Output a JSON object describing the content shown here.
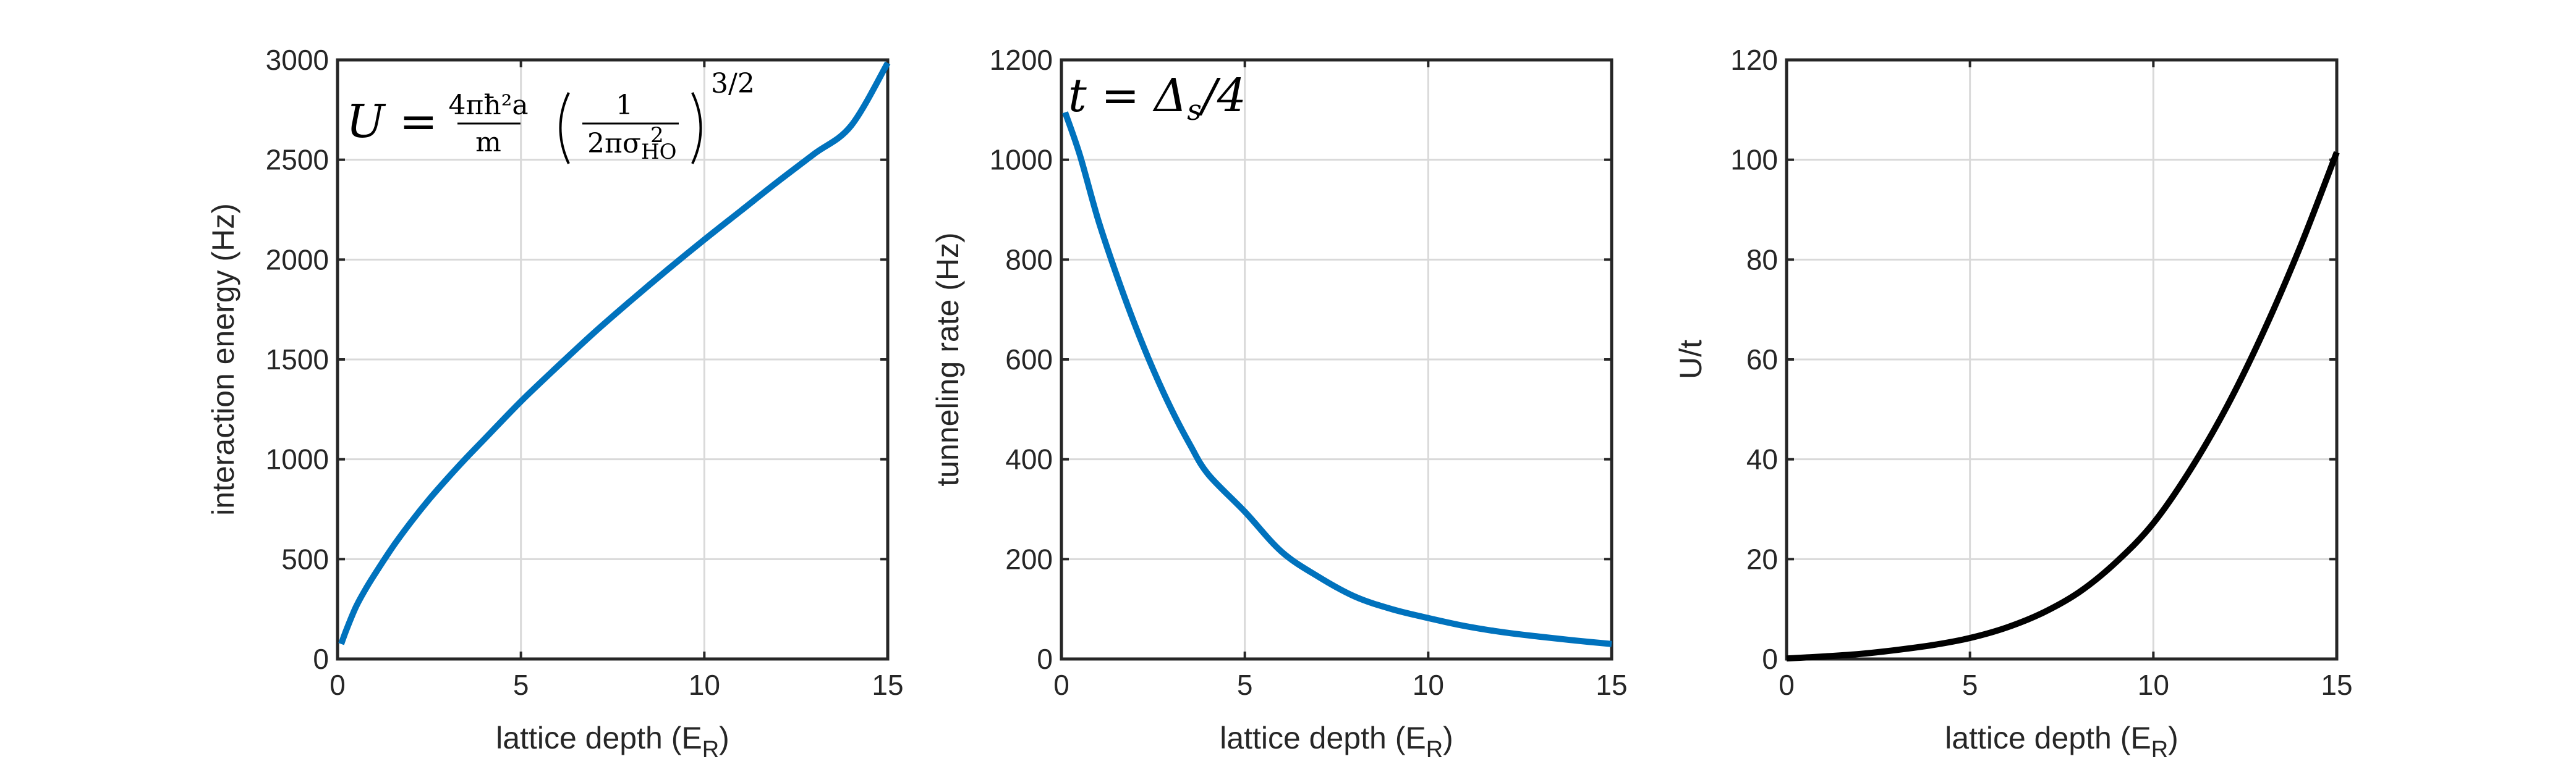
{
  "chart_data": [
    {
      "type": "line",
      "xlabel": "lattice depth (E",
      "xlabel_sub": "R",
      "xlabel_tail": ")",
      "ylabel": "interaction energy (Hz)",
      "xlim": [
        0,
        15
      ],
      "ylim": [
        0,
        3000
      ],
      "xticks": [
        "0",
        "5",
        "10",
        "15"
      ],
      "yticks": [
        "0",
        "500",
        "1000",
        "1500",
        "2000",
        "2500",
        "3000"
      ],
      "grid": true,
      "color": "#0072BD",
      "annotation": {
        "lhs": "U =",
        "frac1_num": "4πħ²a",
        "frac1_den": "m",
        "frac2_num": "1",
        "frac2_den": "2πσ",
        "frac2_den_sub": "HO",
        "frac2_den_sup": "2",
        "exponent": "3/2"
      },
      "x": [
        0.1,
        0.25,
        0.5,
        0.75,
        1,
        1.5,
        2,
        2.5,
        3,
        3.5,
        4,
        5,
        6,
        7,
        8,
        9,
        10,
        11,
        12,
        13,
        14,
        15
      ],
      "y": [
        75,
        150,
        260,
        345,
        420,
        560,
        685,
        800,
        905,
        1005,
        1100,
        1290,
        1465,
        1635,
        1795,
        1950,
        2100,
        2245,
        2390,
        2530,
        2670,
        2985
      ]
    },
    {
      "type": "line",
      "xlabel": "lattice depth (E",
      "xlabel_sub": "R",
      "xlabel_tail": ")",
      "ylabel": "tunneling rate (Hz)",
      "xlim": [
        0,
        15
      ],
      "ylim": [
        0,
        1200
      ],
      "xticks": [
        "0",
        "5",
        "10",
        "15"
      ],
      "yticks": [
        "0",
        "200",
        "400",
        "600",
        "800",
        "1000",
        "1200"
      ],
      "grid": true,
      "color": "#0072BD",
      "annotation": {
        "text": "t = Δ",
        "sub": "s",
        "tail": "/4"
      },
      "x": [
        0.1,
        0.5,
        1,
        1.5,
        2,
        2.5,
        3,
        3.5,
        4,
        5,
        6,
        7,
        8,
        9,
        10,
        11,
        12,
        13,
        14,
        15
      ],
      "y": [
        1095,
        1010,
        880,
        770,
        670,
        580,
        500,
        430,
        370,
        295,
        215,
        165,
        125,
        100,
        82,
        66,
        54,
        45,
        37,
        30
      ]
    },
    {
      "type": "line",
      "xlabel": "lattice depth (E",
      "xlabel_sub": "R",
      "xlabel_tail": ")",
      "ylabel": "U/t",
      "xlim": [
        0,
        15
      ],
      "ylim": [
        0,
        120
      ],
      "xticks": [
        "0",
        "5",
        "10",
        "15"
      ],
      "yticks": [
        "0",
        "20",
        "40",
        "60",
        "80",
        "100",
        "120"
      ],
      "grid": true,
      "color": "#000000",
      "x": [
        0,
        1,
        2,
        3,
        4,
        5,
        6,
        7,
        8,
        9,
        10,
        11,
        12,
        13,
        14,
        15
      ],
      "y": [
        0.1,
        0.5,
        1.0,
        1.8,
        2.8,
        4.2,
        6.3,
        9.3,
        13.5,
        19.5,
        27.2,
        37.8,
        50.5,
        65.5,
        82.5,
        101.5
      ]
    }
  ]
}
